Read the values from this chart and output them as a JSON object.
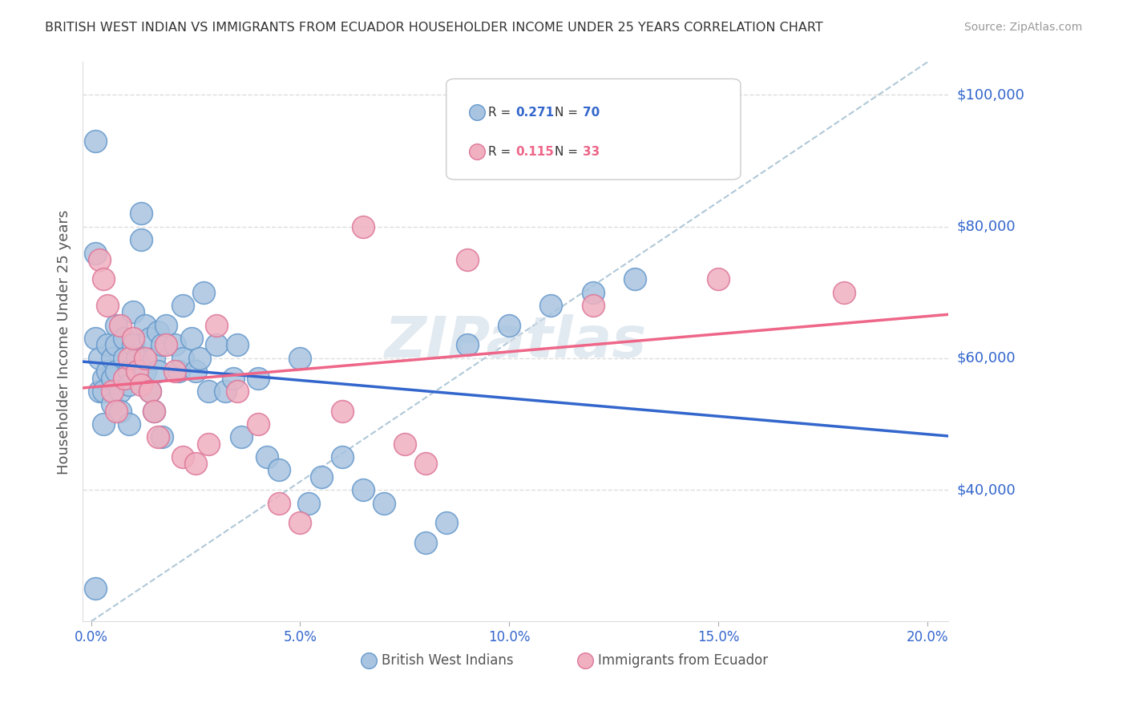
{
  "title": "BRITISH WEST INDIAN VS IMMIGRANTS FROM ECUADOR HOUSEHOLDER INCOME UNDER 25 YEARS CORRELATION CHART",
  "source": "Source: ZipAtlas.com",
  "ylabel": "Householder Income Under 25 years",
  "xlabel_ticks": [
    "0.0%",
    "5.0%",
    "10.0%",
    "15.0%",
    "20.0%"
  ],
  "xlabel_vals": [
    0.0,
    0.05,
    0.1,
    0.15,
    0.2
  ],
  "ylabel_ticks": [
    "$40,000",
    "$60,000",
    "$80,000",
    "$100,000"
  ],
  "ylabel_vals": [
    40000,
    60000,
    80000,
    100000
  ],
  "ylim": [
    20000,
    105000
  ],
  "xlim": [
    -0.002,
    0.205
  ],
  "watermark": "ZIPatlas",
  "legend": {
    "blue_R": "0.271",
    "blue_N": "70",
    "pink_R": "0.115",
    "pink_N": "33"
  },
  "blue_scatter_x": [
    0.001,
    0.002,
    0.003,
    0.001,
    0.002,
    0.003,
    0.003,
    0.004,
    0.004,
    0.005,
    0.005,
    0.005,
    0.006,
    0.006,
    0.006,
    0.007,
    0.007,
    0.008,
    0.008,
    0.009,
    0.009,
    0.009,
    0.01,
    0.01,
    0.011,
    0.012,
    0.012,
    0.013,
    0.013,
    0.014,
    0.014,
    0.015,
    0.015,
    0.016,
    0.016,
    0.017,
    0.017,
    0.018,
    0.02,
    0.021,
    0.022,
    0.022,
    0.024,
    0.025,
    0.026,
    0.027,
    0.028,
    0.03,
    0.032,
    0.034,
    0.035,
    0.036,
    0.04,
    0.042,
    0.045,
    0.05,
    0.052,
    0.055,
    0.06,
    0.065,
    0.07,
    0.08,
    0.085,
    0.09,
    0.1,
    0.11,
    0.12,
    0.13,
    0.001,
    0.001
  ],
  "blue_scatter_y": [
    76000,
    55000,
    57000,
    63000,
    60000,
    55000,
    50000,
    62000,
    58000,
    60000,
    57000,
    53000,
    65000,
    62000,
    58000,
    55000,
    52000,
    63000,
    60000,
    58000,
    56000,
    50000,
    67000,
    62000,
    60000,
    82000,
    78000,
    65000,
    58000,
    63000,
    55000,
    60000,
    52000,
    64000,
    58000,
    62000,
    48000,
    65000,
    62000,
    58000,
    68000,
    60000,
    63000,
    58000,
    60000,
    70000,
    55000,
    62000,
    55000,
    57000,
    62000,
    48000,
    57000,
    45000,
    43000,
    60000,
    38000,
    42000,
    45000,
    40000,
    38000,
    32000,
    35000,
    62000,
    65000,
    68000,
    70000,
    72000,
    93000,
    25000
  ],
  "pink_scatter_x": [
    0.002,
    0.003,
    0.004,
    0.005,
    0.006,
    0.007,
    0.008,
    0.009,
    0.01,
    0.011,
    0.012,
    0.013,
    0.014,
    0.015,
    0.016,
    0.018,
    0.02,
    0.022,
    0.025,
    0.028,
    0.03,
    0.035,
    0.04,
    0.045,
    0.05,
    0.06,
    0.065,
    0.075,
    0.08,
    0.09,
    0.12,
    0.15,
    0.18
  ],
  "pink_scatter_y": [
    75000,
    72000,
    68000,
    55000,
    52000,
    65000,
    57000,
    60000,
    63000,
    58000,
    56000,
    60000,
    55000,
    52000,
    48000,
    62000,
    58000,
    45000,
    44000,
    47000,
    65000,
    55000,
    50000,
    38000,
    35000,
    52000,
    80000,
    47000,
    44000,
    75000,
    68000,
    72000,
    70000
  ],
  "blue_color": "#a8c4e0",
  "blue_edge": "#6699cc",
  "pink_color": "#f0b0c0",
  "pink_edge": "#dd7799",
  "blue_line_color": "#3366cc",
  "pink_line_color": "#ee6688",
  "diagonal_color": "#b0c8d8",
  "grid_color": "#dddddd",
  "title_color": "#333333",
  "source_color": "#999999",
  "axis_label_color": "#3366cc",
  "watermark_color": "#d0dde8"
}
